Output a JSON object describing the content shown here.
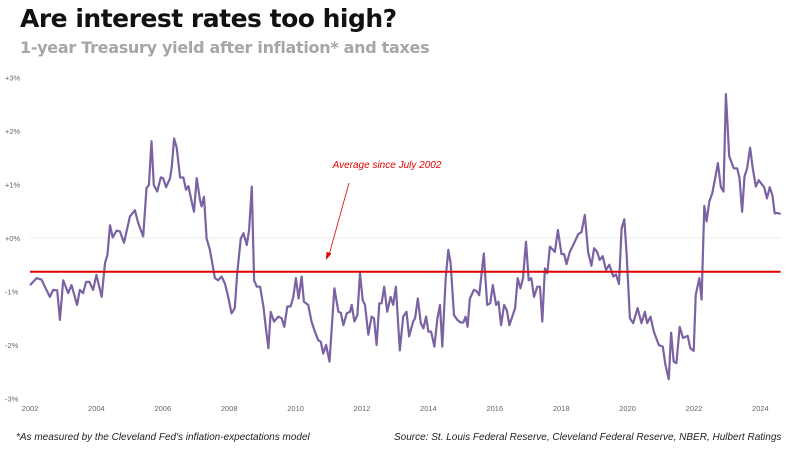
{
  "title": "Are interest rates too high?",
  "subtitle": "1-year Treasury yield after inflation* and taxes",
  "footnote": "*As measured by the Cleveland Fed's inflation-expectations model",
  "source": "Source: St. Louis Federal Reserve, Cleveland Federal Reserve, NBER, Hulbert Ratings",
  "chart_data": {
    "type": "line",
    "title": "Are interest rates too high?",
    "subtitle": "1-year Treasury yield after inflation* and taxes",
    "xlabel": "",
    "ylabel": "",
    "xlim": [
      2002,
      2024.7
    ],
    "ylim": [
      -3,
      3
    ],
    "x_ticks": [
      "2002",
      "2004",
      "2006",
      "2008",
      "2010",
      "2012",
      "2014",
      "2016",
      "2018",
      "2020",
      "2022",
      "2024"
    ],
    "y_ticks": [
      "+3%",
      "+2%",
      "+1%",
      "+0%",
      "-1%",
      "-2%",
      "-3%"
    ],
    "grid": "zero line only",
    "colors": {
      "series": "#7b62a3",
      "average": "#e00000",
      "annotation": "#e00000"
    },
    "series": [
      {
        "points": [
          [
            2002.0,
            -0.88
          ],
          [
            2002.2,
            -0.75
          ],
          [
            2002.35,
            -0.78
          ],
          [
            2002.45,
            -0.91
          ],
          [
            2002.6,
            -1.1
          ],
          [
            2002.7,
            -0.97
          ],
          [
            2002.82,
            -0.98
          ],
          [
            2002.9,
            -1.53
          ],
          [
            2003.0,
            -0.79
          ],
          [
            2003.15,
            -1.03
          ],
          [
            2003.25,
            -0.88
          ],
          [
            2003.42,
            -1.25
          ],
          [
            2003.5,
            -0.97
          ],
          [
            2003.6,
            -1.03
          ],
          [
            2003.69,
            -0.82
          ],
          [
            2003.79,
            -0.82
          ],
          [
            2003.9,
            -0.97
          ],
          [
            2004.0,
            -0.69
          ],
          [
            2004.16,
            -1.1
          ],
          [
            2004.26,
            -0.47
          ],
          [
            2004.33,
            -0.32
          ],
          [
            2004.41,
            0.24
          ],
          [
            2004.49,
            0.01
          ],
          [
            2004.61,
            0.14
          ],
          [
            2004.71,
            0.12
          ],
          [
            2004.83,
            -0.09
          ],
          [
            2005.01,
            0.4
          ],
          [
            2005.16,
            0.52
          ],
          [
            2005.26,
            0.28
          ],
          [
            2005.41,
            0.03
          ],
          [
            2005.51,
            0.93
          ],
          [
            2005.58,
            0.99
          ],
          [
            2005.66,
            1.81
          ],
          [
            2005.73,
            0.99
          ],
          [
            2005.83,
            0.87
          ],
          [
            2005.94,
            1.13
          ],
          [
            2006.01,
            1.12
          ],
          [
            2006.1,
            0.95
          ],
          [
            2006.22,
            1.12
          ],
          [
            2006.27,
            1.33
          ],
          [
            2006.34,
            1.86
          ],
          [
            2006.42,
            1.69
          ],
          [
            2006.52,
            1.13
          ],
          [
            2006.62,
            1.13
          ],
          [
            2006.7,
            0.9
          ],
          [
            2006.77,
            0.97
          ],
          [
            2006.9,
            0.59
          ],
          [
            2006.94,
            0.49
          ],
          [
            2007.02,
            1.12
          ],
          [
            2007.12,
            0.71
          ],
          [
            2007.17,
            0.59
          ],
          [
            2007.24,
            0.77
          ],
          [
            2007.32,
            -0.01
          ],
          [
            2007.42,
            -0.22
          ],
          [
            2007.57,
            -0.75
          ],
          [
            2007.67,
            -0.79
          ],
          [
            2007.77,
            -0.72
          ],
          [
            2007.87,
            -0.85
          ],
          [
            2007.97,
            -1.1
          ],
          [
            2008.07,
            -1.41
          ],
          [
            2008.17,
            -1.31
          ],
          [
            2008.24,
            -0.66
          ],
          [
            2008.35,
            -0.01
          ],
          [
            2008.43,
            0.09
          ],
          [
            2008.53,
            -0.13
          ],
          [
            2008.6,
            0.15
          ],
          [
            2008.68,
            0.96
          ],
          [
            2008.75,
            -0.79
          ],
          [
            2008.83,
            -0.91
          ],
          [
            2008.93,
            -0.91
          ],
          [
            2009.03,
            -1.28
          ],
          [
            2009.11,
            -1.72
          ],
          [
            2009.18,
            -2.06
          ],
          [
            2009.25,
            -1.38
          ],
          [
            2009.35,
            -1.56
          ],
          [
            2009.48,
            -1.47
          ],
          [
            2009.58,
            -1.5
          ],
          [
            2009.66,
            -1.66
          ],
          [
            2009.75,
            -1.28
          ],
          [
            2009.85,
            -1.28
          ],
          [
            2009.93,
            -1.1
          ],
          [
            2010.01,
            -0.75
          ],
          [
            2010.09,
            -1.13
          ],
          [
            2010.18,
            -0.72
          ],
          [
            2010.25,
            -1.19
          ],
          [
            2010.38,
            -1.25
          ],
          [
            2010.48,
            -1.56
          ],
          [
            2010.58,
            -1.75
          ],
          [
            2010.68,
            -1.91
          ],
          [
            2010.76,
            -1.94
          ],
          [
            2010.83,
            -2.16
          ],
          [
            2010.92,
            -2.0
          ],
          [
            2011.02,
            -2.31
          ],
          [
            2011.17,
            -0.94
          ],
          [
            2011.29,
            -1.38
          ],
          [
            2011.36,
            -1.4
          ],
          [
            2011.44,
            -1.63
          ],
          [
            2011.54,
            -1.41
          ],
          [
            2011.64,
            -1.38
          ],
          [
            2011.69,
            -1.25
          ],
          [
            2011.77,
            -1.56
          ],
          [
            2011.86,
            -1.44
          ],
          [
            2011.94,
            -0.66
          ],
          [
            2012.02,
            -1.16
          ],
          [
            2012.09,
            -1.25
          ],
          [
            2012.19,
            -1.81
          ],
          [
            2012.29,
            -1.47
          ],
          [
            2012.36,
            -1.5
          ],
          [
            2012.44,
            -2.0
          ],
          [
            2012.52,
            -1.22
          ],
          [
            2012.59,
            -1.22
          ],
          [
            2012.67,
            -0.91
          ],
          [
            2012.76,
            -1.38
          ],
          [
            2012.86,
            -1.1
          ],
          [
            2012.94,
            -1.25
          ],
          [
            2013.02,
            -0.91
          ],
          [
            2013.14,
            -2.1
          ],
          [
            2013.24,
            -1.47
          ],
          [
            2013.34,
            -1.38
          ],
          [
            2013.42,
            -1.84
          ],
          [
            2013.54,
            -1.56
          ],
          [
            2013.6,
            -1.5
          ],
          [
            2013.68,
            -1.13
          ],
          [
            2013.77,
            -1.59
          ],
          [
            2013.85,
            -1.69
          ],
          [
            2013.93,
            -1.47
          ],
          [
            2014.0,
            -1.75
          ],
          [
            2014.08,
            -1.75
          ],
          [
            2014.18,
            -2.03
          ],
          [
            2014.27,
            -1.5
          ],
          [
            2014.35,
            -1.25
          ],
          [
            2014.42,
            -2.03
          ],
          [
            2014.52,
            -0.75
          ],
          [
            2014.6,
            -0.22
          ],
          [
            2014.67,
            -0.47
          ],
          [
            2014.77,
            -1.44
          ],
          [
            2014.87,
            -1.53
          ],
          [
            2014.97,
            -1.58
          ],
          [
            2015.05,
            -1.58
          ],
          [
            2015.12,
            -1.47
          ],
          [
            2015.18,
            -1.66
          ],
          [
            2015.25,
            -1.13
          ],
          [
            2015.37,
            -0.97
          ],
          [
            2015.45,
            -0.99
          ],
          [
            2015.53,
            -1.07
          ],
          [
            2015.67,
            -0.29
          ],
          [
            2015.77,
            -1.25
          ],
          [
            2015.86,
            -1.22
          ],
          [
            2015.94,
            -0.88
          ],
          [
            2016.04,
            -1.25
          ],
          [
            2016.11,
            -1.19
          ],
          [
            2016.19,
            -1.63
          ],
          [
            2016.28,
            -1.25
          ],
          [
            2016.36,
            -1.35
          ],
          [
            2016.44,
            -1.63
          ],
          [
            2016.61,
            -1.31
          ],
          [
            2016.69,
            -0.75
          ],
          [
            2016.77,
            -0.94
          ],
          [
            2016.85,
            -0.75
          ],
          [
            2016.94,
            -0.07
          ],
          [
            2017.02,
            -0.79
          ],
          [
            2017.1,
            -0.75
          ],
          [
            2017.18,
            -1.1
          ],
          [
            2017.28,
            -0.91
          ],
          [
            2017.36,
            -0.91
          ],
          [
            2017.43,
            -1.56
          ],
          [
            2017.51,
            -0.57
          ],
          [
            2017.58,
            -0.66
          ],
          [
            2017.66,
            -0.16
          ],
          [
            2017.81,
            -0.26
          ],
          [
            2017.9,
            0.15
          ],
          [
            2018.01,
            -0.3
          ],
          [
            2018.09,
            -0.3
          ],
          [
            2018.16,
            -0.49
          ],
          [
            2018.26,
            -0.26
          ],
          [
            2018.41,
            -0.07
          ],
          [
            2018.51,
            0.07
          ],
          [
            2018.61,
            0.11
          ],
          [
            2018.71,
            0.43
          ],
          [
            2018.81,
            -0.26
          ],
          [
            2018.91,
            -0.52
          ],
          [
            2018.99,
            -0.19
          ],
          [
            2019.08,
            -0.26
          ],
          [
            2019.16,
            -0.41
          ],
          [
            2019.25,
            -0.34
          ],
          [
            2019.35,
            -0.6
          ],
          [
            2019.45,
            -0.5
          ],
          [
            2019.57,
            -0.72
          ],
          [
            2019.65,
            -0.68
          ],
          [
            2019.74,
            -0.86
          ],
          [
            2019.82,
            0.18
          ],
          [
            2019.9,
            0.35
          ],
          [
            2019.97,
            -0.29
          ],
          [
            2020.07,
            -1.5
          ],
          [
            2020.17,
            -1.59
          ],
          [
            2020.3,
            -1.31
          ],
          [
            2020.42,
            -1.59
          ],
          [
            2020.52,
            -1.38
          ],
          [
            2020.59,
            -1.59
          ],
          [
            2020.69,
            -1.47
          ],
          [
            2020.79,
            -1.75
          ],
          [
            2020.94,
            -2.0
          ],
          [
            2021.06,
            -2.03
          ],
          [
            2021.14,
            -2.37
          ],
          [
            2021.24,
            -2.64
          ],
          [
            2021.31,
            -1.77
          ],
          [
            2021.39,
            -2.31
          ],
          [
            2021.47,
            -2.34
          ],
          [
            2021.57,
            -1.66
          ],
          [
            2021.67,
            -1.87
          ],
          [
            2021.81,
            -1.83
          ],
          [
            2021.89,
            -2.06
          ],
          [
            2021.99,
            -2.11
          ],
          [
            2022.05,
            -1.07
          ],
          [
            2022.16,
            -0.75
          ],
          [
            2022.23,
            -1.15
          ],
          [
            2022.31,
            0.6
          ],
          [
            2022.38,
            0.31
          ],
          [
            2022.46,
            0.68
          ],
          [
            2022.55,
            0.84
          ],
          [
            2022.64,
            1.12
          ],
          [
            2022.72,
            1.4
          ],
          [
            2022.81,
            0.95
          ],
          [
            2022.89,
            0.87
          ],
          [
            2022.96,
            2.69
          ],
          [
            2023.06,
            1.53
          ],
          [
            2023.2,
            1.3
          ],
          [
            2023.3,
            1.3
          ],
          [
            2023.37,
            1.12
          ],
          [
            2023.45,
            0.49
          ],
          [
            2023.52,
            1.15
          ],
          [
            2023.6,
            1.3
          ],
          [
            2023.69,
            1.69
          ],
          [
            2023.77,
            1.3
          ],
          [
            2023.86,
            0.96
          ],
          [
            2023.95,
            1.08
          ],
          [
            2024.11,
            0.95
          ],
          [
            2024.2,
            0.74
          ],
          [
            2024.28,
            0.95
          ],
          [
            2024.36,
            0.8
          ],
          [
            2024.43,
            0.46
          ],
          [
            2024.5,
            0.47
          ],
          [
            2024.61,
            0.45
          ]
        ]
      }
    ],
    "average": {
      "value": -0.63,
      "label": "Average since July 2002"
    }
  }
}
